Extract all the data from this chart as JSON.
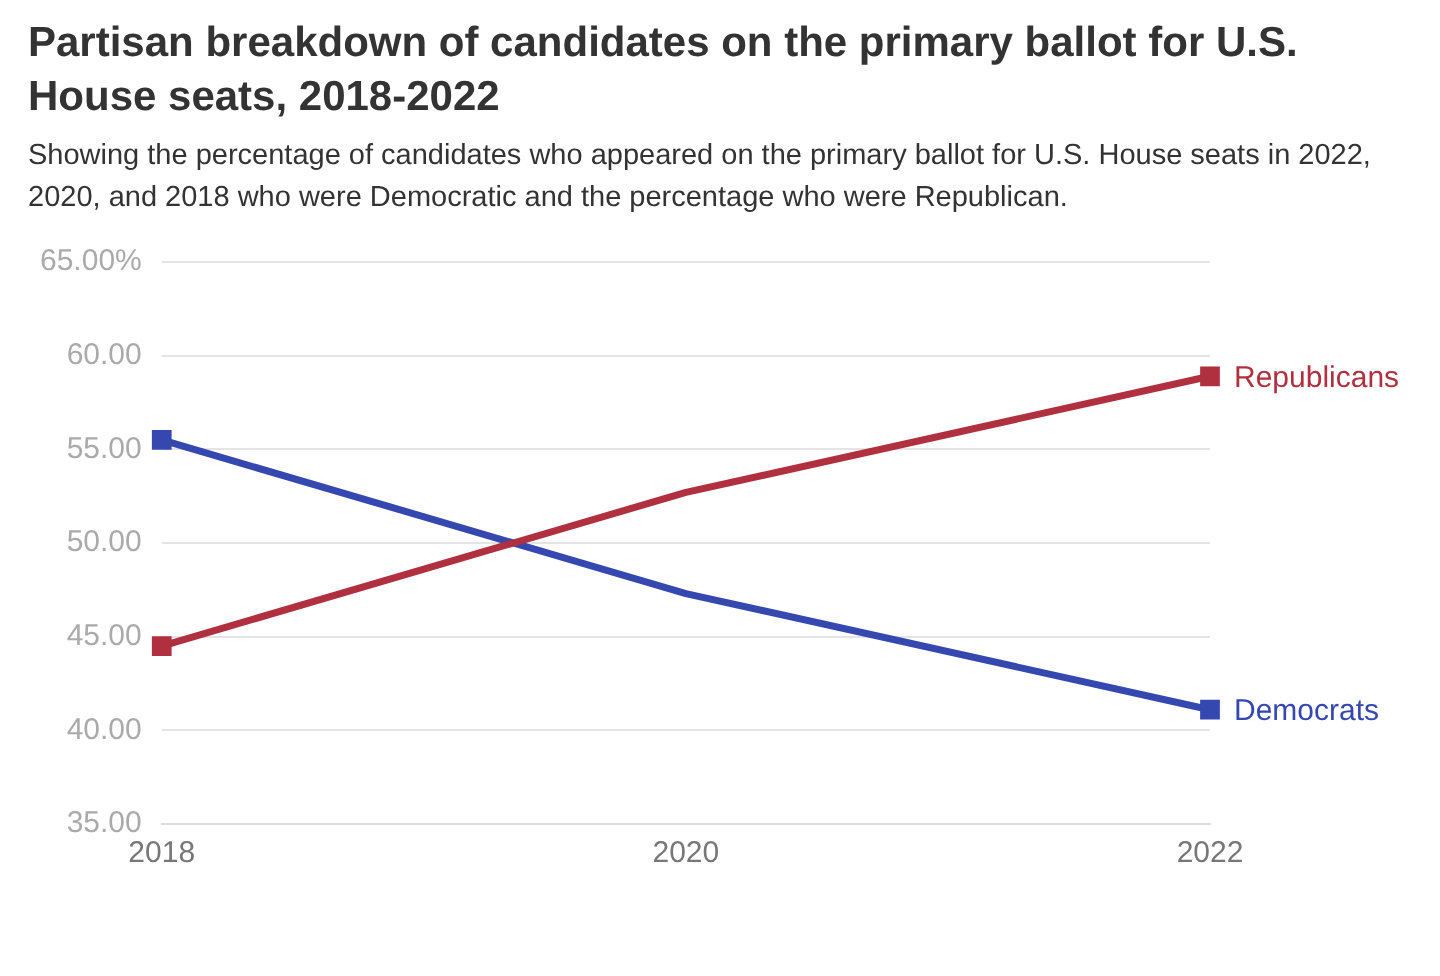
{
  "chart_data": {
    "type": "line",
    "title": "Partisan breakdown of candidates on the primary ballot for U.S. House seats, 2018-2022",
    "subtitle": "Showing the percentage of candidates who appeared on the primary ballot for U.S. House seats in 2022, 2020, and 2018 who were Democratic and the percentage who were Republican.",
    "categories": [
      "2018",
      "2020",
      "2022"
    ],
    "series": [
      {
        "name": "Republicans",
        "color": "#b0303f",
        "values": [
          44.5,
          52.7,
          58.9
        ]
      },
      {
        "name": "Democrats",
        "color": "#3448b0",
        "values": [
          55.5,
          47.3,
          41.1
        ]
      }
    ],
    "ylim": [
      35,
      65
    ],
    "yticks": [
      {
        "value": 35,
        "label": "35.00"
      },
      {
        "value": 40,
        "label": "40.00"
      },
      {
        "value": 45,
        "label": "45.00"
      },
      {
        "value": 50,
        "label": "50.00"
      },
      {
        "value": 55,
        "label": "55.00"
      },
      {
        "value": 60,
        "label": "60.00"
      },
      {
        "value": 65,
        "label": "65.00%"
      }
    ],
    "grid": "y",
    "legend": false,
    "marker": "square",
    "line_style": "solid"
  }
}
